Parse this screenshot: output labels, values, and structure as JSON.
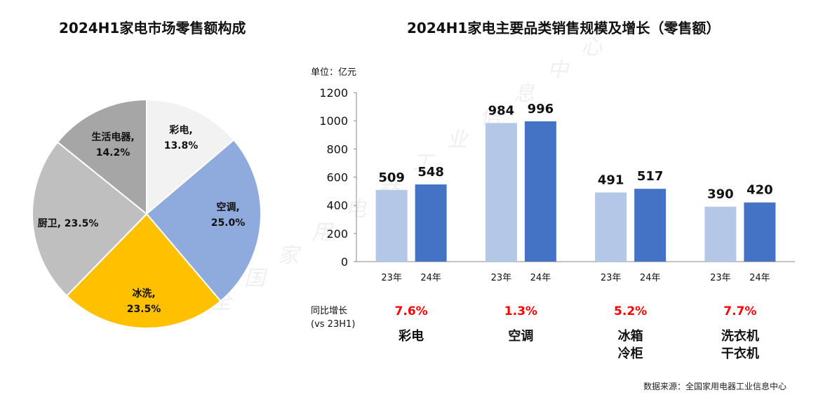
{
  "chart_data": [
    {
      "type": "pie",
      "title": "2024H1家电市场零售额构成",
      "slices": [
        {
          "label": "彩电,",
          "value": 13.8,
          "value_label": "13.8%",
          "color": "#f2f2f2"
        },
        {
          "label": "空调,",
          "value": 25.0,
          "value_label": "25.0%",
          "color": "#8faadc"
        },
        {
          "label": "冰洗,",
          "value": 23.5,
          "value_label": "23.5%",
          "color": "#ffc000"
        },
        {
          "label": "厨卫,",
          "value": 23.5,
          "value_label": "23.5%",
          "color": "#bfbfbf"
        },
        {
          "label": "生活电器,",
          "value": 14.2,
          "value_label": "14.2%",
          "color": "#a6a6a6"
        }
      ]
    },
    {
      "type": "bar",
      "title": "2024H1家电主要品类销售规模及增长（零售额）",
      "unit_label": "单位：亿元",
      "ylim": [
        0,
        1200
      ],
      "yticks": [
        "0",
        "200",
        "400",
        "600",
        "800",
        "1000",
        "1200"
      ],
      "yoy_label_line1": "同比增长",
      "yoy_label_line2": "(vs 23H1)",
      "series": [
        {
          "name": "23年",
          "color": "#b4c7e7"
        },
        {
          "name": "24年",
          "color": "#4472c4"
        }
      ],
      "groups": [
        {
          "category": [
            "彩电"
          ],
          "values": [
            509,
            548
          ],
          "labels": [
            "509",
            "548"
          ],
          "growth": "7.6%"
        },
        {
          "category": [
            "空调"
          ],
          "values": [
            984,
            996
          ],
          "labels": [
            "984",
            "996"
          ],
          "growth": "1.3%"
        },
        {
          "category": [
            "冰箱",
            "冷柜"
          ],
          "values": [
            491,
            517
          ],
          "labels": [
            "491",
            "517"
          ],
          "growth": "5.2%"
        },
        {
          "category": [
            "洗衣机",
            "干衣机"
          ],
          "values": [
            390,
            420
          ],
          "labels": [
            "390",
            "420"
          ],
          "growth": "7.7%"
        }
      ],
      "growth_color": "#ff0000"
    }
  ],
  "source": "数据来源：全国家用电器工业信息中心",
  "watermark": "全国家用电器工业信息中心"
}
